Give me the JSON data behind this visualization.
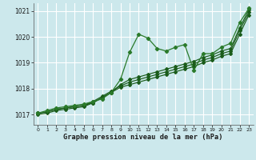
{
  "title": "Graphe pression niveau de la mer (hPa)",
  "bg_color": "#cce8ec",
  "grid_color": "#ffffff",
  "line_color_dark": "#1a5c1a",
  "line_color_med": "#2a7a2a",
  "xlim": [
    -0.5,
    23.5
  ],
  "ylim": [
    1016.6,
    1021.3
  ],
  "yticks": [
    1017,
    1018,
    1019,
    1020,
    1021
  ],
  "xticks": [
    0,
    1,
    2,
    3,
    4,
    5,
    6,
    7,
    8,
    9,
    10,
    11,
    12,
    13,
    14,
    15,
    16,
    17,
    18,
    19,
    20,
    21,
    22,
    23
  ],
  "series1": [
    1017.05,
    1017.15,
    1017.25,
    1017.3,
    1017.35,
    1017.4,
    1017.5,
    1017.6,
    1017.85,
    1018.35,
    1019.4,
    1020.1,
    1019.95,
    1019.55,
    1019.45,
    1019.6,
    1019.7,
    1018.7,
    1019.35,
    1019.35,
    1019.6,
    1019.75,
    1020.55,
    1021.1
  ],
  "series2": [
    1017.05,
    1017.1,
    1017.2,
    1017.25,
    1017.3,
    1017.35,
    1017.45,
    1017.65,
    1017.85,
    1018.15,
    1018.35,
    1018.45,
    1018.55,
    1018.65,
    1018.75,
    1018.85,
    1018.95,
    1019.05,
    1019.2,
    1019.3,
    1019.45,
    1019.55,
    1020.35,
    1021.05
  ],
  "series3": [
    1017.05,
    1017.1,
    1017.2,
    1017.25,
    1017.3,
    1017.35,
    1017.5,
    1017.7,
    1017.9,
    1018.1,
    1018.25,
    1018.35,
    1018.45,
    1018.55,
    1018.65,
    1018.75,
    1018.85,
    1018.95,
    1019.1,
    1019.2,
    1019.35,
    1019.45,
    1020.25,
    1020.95
  ],
  "series4": [
    1017.0,
    1017.05,
    1017.15,
    1017.2,
    1017.25,
    1017.3,
    1017.45,
    1017.65,
    1017.85,
    1018.05,
    1018.15,
    1018.25,
    1018.35,
    1018.45,
    1018.55,
    1018.65,
    1018.75,
    1018.85,
    1019.0,
    1019.1,
    1019.25,
    1019.35,
    1020.1,
    1020.85
  ]
}
